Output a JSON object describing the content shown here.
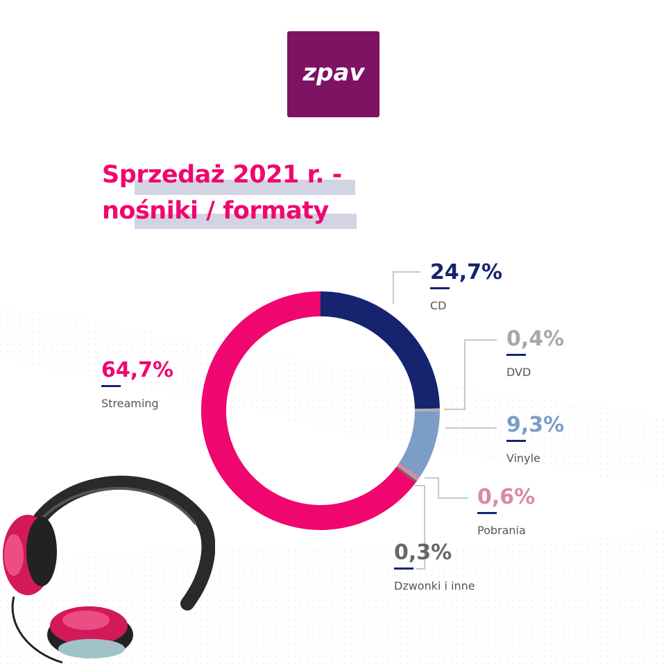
{
  "logo": {
    "text": "zpav",
    "color": "#7e1263"
  },
  "title": {
    "line1": "Sprzedaż 2021 r. -",
    "line2": "nośniki / formaty",
    "color": "#f0066f",
    "highlight_color": "#d3d4e3"
  },
  "chart_data": {
    "type": "pie",
    "style": "donut",
    "title": "Sprzedaż 2021 r. - nośniki / formaty",
    "unit": "%",
    "slices": [
      {
        "name": "CD",
        "value": 24.7,
        "label": "24,7%",
        "color": "#16236f"
      },
      {
        "name": "DVD",
        "value": 0.4,
        "label": "0,4%",
        "color": "#b0b0b0"
      },
      {
        "name": "Vinyle",
        "value": 9.3,
        "label": "9,3%",
        "color": "#7b9dc7"
      },
      {
        "name": "Pobrania",
        "value": 0.6,
        "label": "0,6%",
        "color": "#d88aa0"
      },
      {
        "name": "Dzwonki i inne",
        "value": 0.3,
        "label": "0,3%",
        "color": "#666666"
      },
      {
        "name": "Streaming",
        "value": 64.7,
        "label": "64,7%",
        "color": "#f0066f"
      }
    ]
  }
}
